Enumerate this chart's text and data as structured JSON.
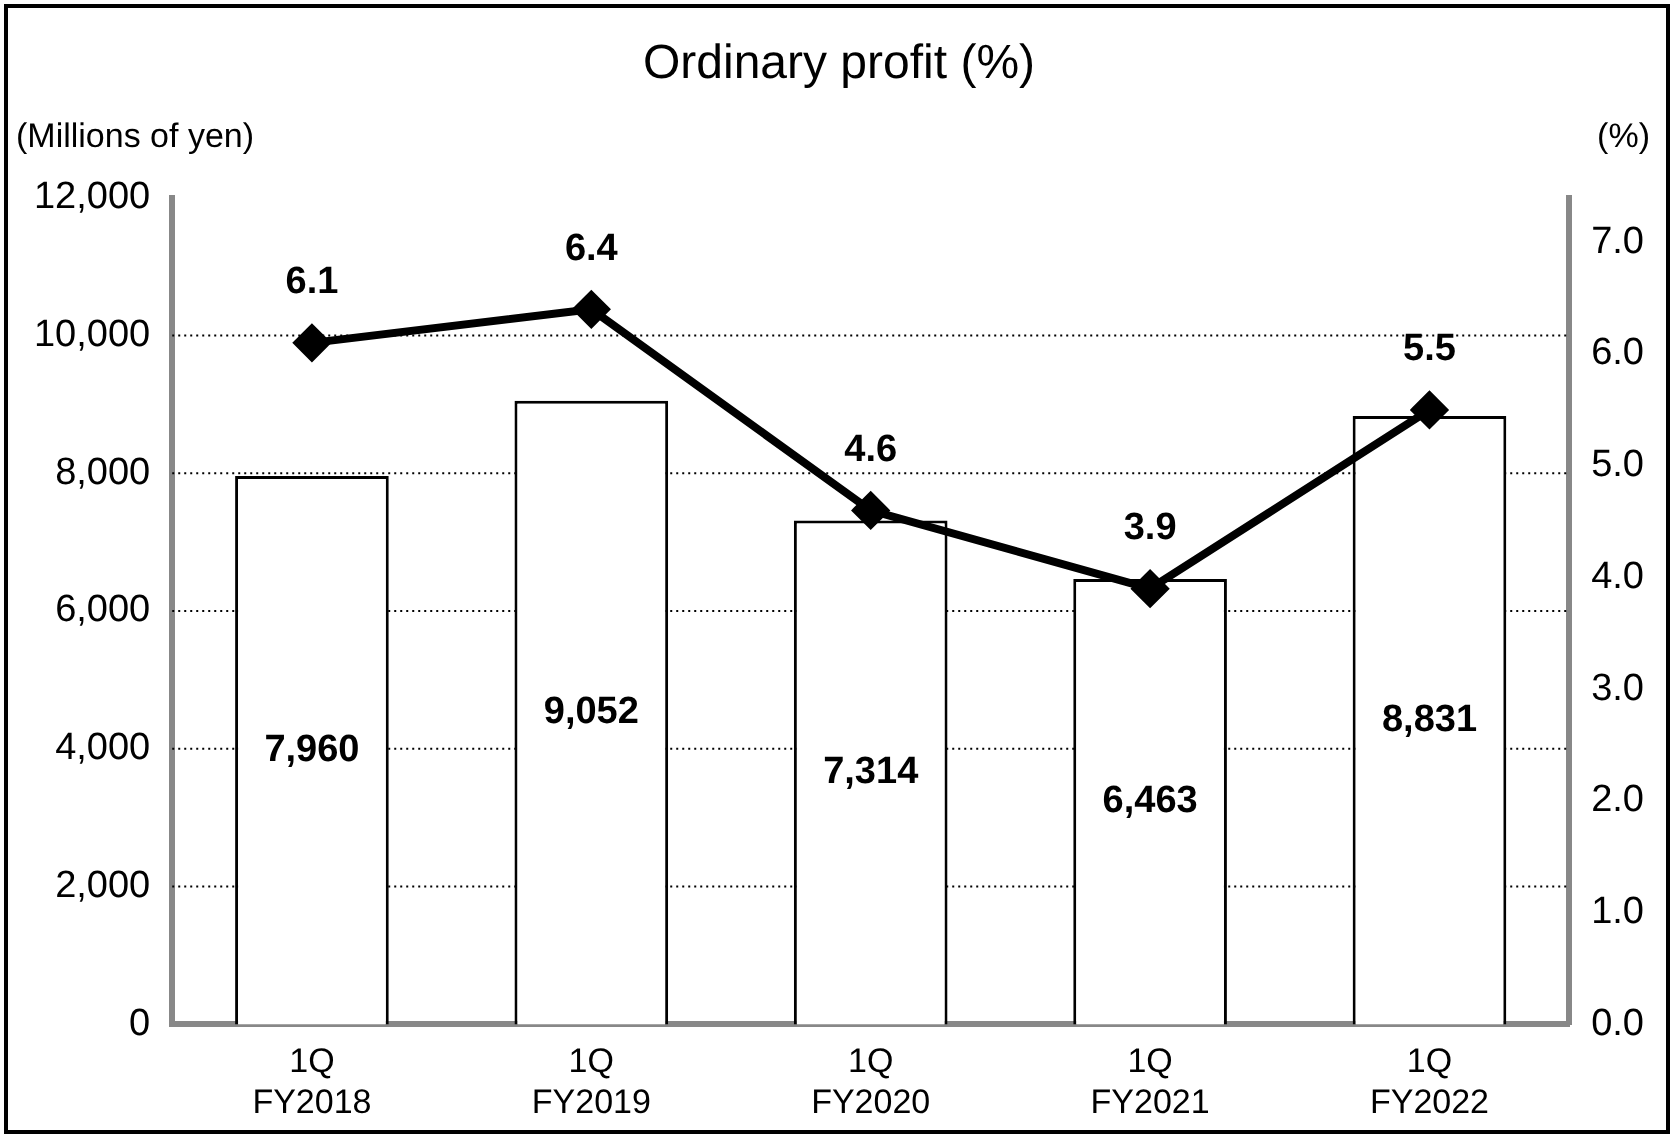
{
  "chart_data": {
    "type": "bar",
    "title": "Ordinary profit (%)",
    "ylabel": "(Millions of yen)",
    "y2label": "(%)",
    "categories": [
      "1Q FY2018",
      "1Q FY2019",
      "1Q FY2020",
      "1Q FY2021",
      "1Q FY2022"
    ],
    "series": [
      {
        "color": "#ffffff",
        "values": [
          7960,
          9052,
          7314,
          6463,
          8831
        ],
        "value_labels": [
          "7,960",
          "9,052",
          "7,314",
          "6,463",
          "8,831"
        ]
      },
      {
        "type": "line",
        "color": "#000000",
        "axis": "y2",
        "marker": "diamond",
        "values": [
          6.1,
          6.4,
          4.6,
          3.9,
          5.5
        ],
        "value_labels": [
          "6.1",
          "6.4",
          "4.6",
          "3.9",
          "5.5"
        ]
      }
    ],
    "ylim": [
      0,
      12000
    ],
    "yticks": [
      {
        "value": 0,
        "label": "0"
      },
      {
        "value": 2000,
        "label": "2,000"
      },
      {
        "value": 4000,
        "label": "4,000"
      },
      {
        "value": 6000,
        "label": "6,000"
      },
      {
        "value": 8000,
        "label": "8,000"
      },
      {
        "value": 10000,
        "label": "10,000"
      },
      {
        "value": 12000,
        "label": "12,000"
      }
    ],
    "y2lim": [
      0,
      7.4
    ],
    "y2ticks": [
      {
        "value": 0,
        "label": "0.0"
      },
      {
        "value": 1,
        "label": "1.0"
      },
      {
        "value": 2,
        "label": "2.0"
      },
      {
        "value": 3,
        "label": "3.0"
      },
      {
        "value": 4,
        "label": "4.0"
      },
      {
        "value": 5,
        "label": "5.0"
      },
      {
        "value": 6,
        "label": "6.0"
      },
      {
        "value": 7,
        "label": "7.0"
      }
    ],
    "grid": "y",
    "legend": false
  }
}
